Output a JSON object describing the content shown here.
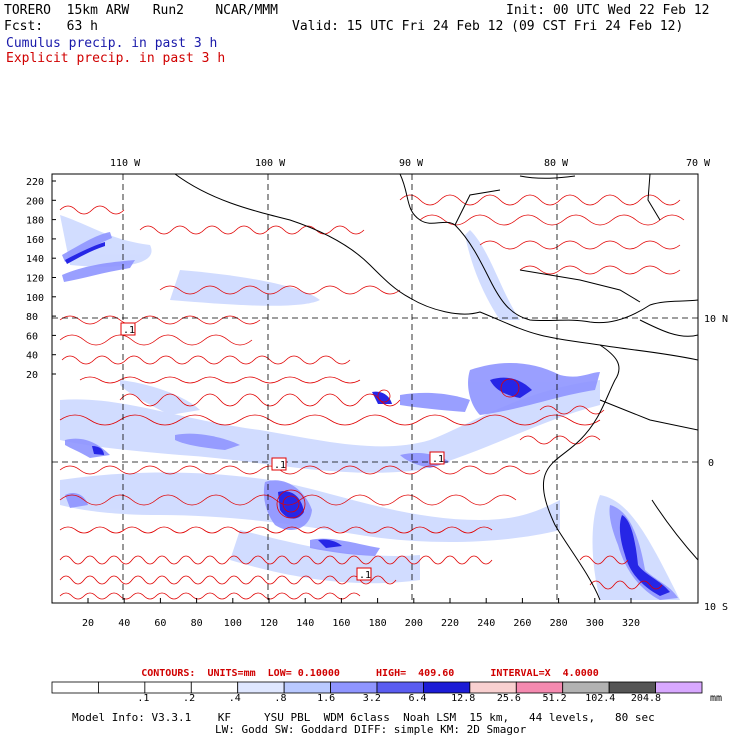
{
  "header": {
    "model": "TORERO  15km ARW   Run2    NCAR/MMM",
    "init": "Init: 00 UTC Wed 22 Feb 12",
    "fcst": "Fcst:   63 h",
    "valid": "Valid: 15 UTC Fri 24 Feb 12 (09 CST Fri 24 Feb 12)",
    "legend_cumulus": "Cumulus precip. in past 3 h",
    "legend_explicit": "Explicit precip. in past 3 h"
  },
  "map": {
    "lon_labels": [
      "110 W",
      "100 W",
      "90 W",
      "80 W",
      "70 W"
    ],
    "lat_labels": [
      "10 N",
      "0",
      "10 S"
    ],
    "y_ticks": [
      "220",
      "200",
      "180",
      "160",
      "140",
      "120",
      "100",
      "80",
      "60",
      "40",
      "20"
    ],
    "x_ticks": [
      "20",
      "40",
      "60",
      "80",
      "100",
      "120",
      "140",
      "160",
      "180",
      "200",
      "220",
      "240",
      "260",
      "280",
      "300",
      "320"
    ],
    "box_labels": [
      ".1",
      ".1",
      ".1",
      ".1"
    ],
    "colors": {
      "contour": "#e00000",
      "coast": "#000000",
      "light": "#c8d8ff",
      "mid": "#8a8cff",
      "dark": "#2a2aee"
    }
  },
  "contours_caption": "CONTOURS:  UNITS=mm  LOW= 0.10000      HIGH=  409.60      INTERVAL=X  4.0000",
  "colorbar": {
    "labels": [
      ".1",
      ".2",
      ".4",
      ".8",
      "1.6",
      "3.2",
      "6.4",
      "12.8",
      "25.6",
      "51.2",
      "102.4",
      "204.8"
    ],
    "unit": "mm",
    "colors": [
      "#ffffff",
      "#ffffff",
      "#ffffff",
      "#ffffff",
      "#dfe7ff",
      "#b9c9ff",
      "#8f95ff",
      "#5a5cf0",
      "#1c1cd6",
      "#f9d0d0",
      "#f58ab0",
      "#b2b2b2",
      "#555555",
      "#d8a8ff"
    ]
  },
  "footer": {
    "line1": "Model Info: V3.3.1    KF     YSU PBL  WDM 6class  Noah LSM  15 km,   44 levels,   80 sec",
    "line2": "LW: Godd SW: Goddard DIFF: simple KM: 2D Smagor"
  }
}
